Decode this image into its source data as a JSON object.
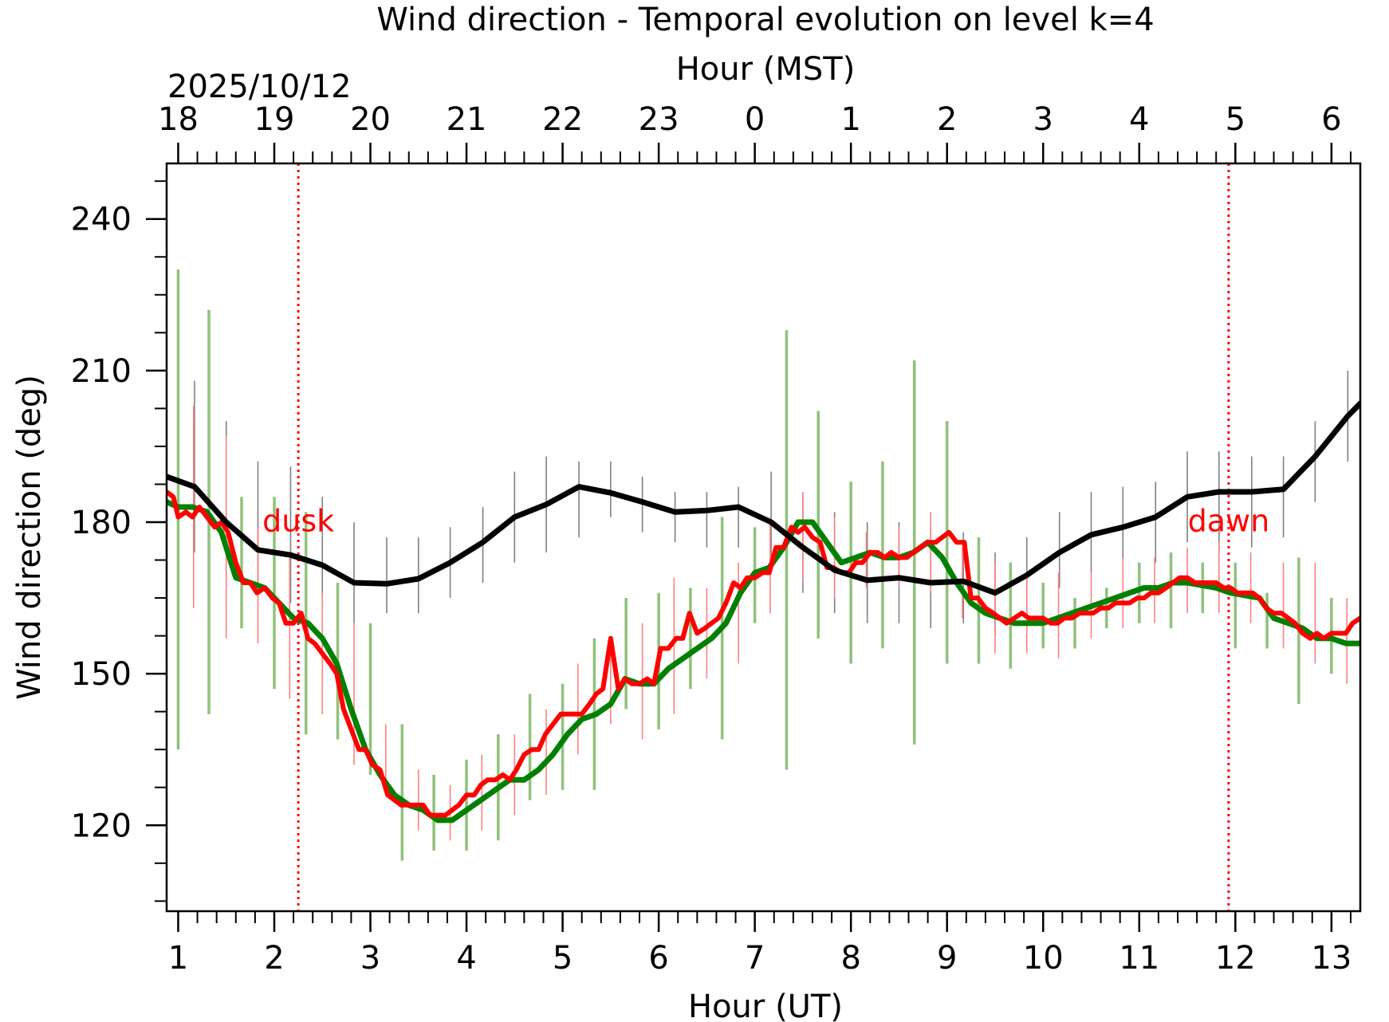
{
  "chart_data": {
    "type": "line",
    "title": "Wind direction - Temporal evolution on level k=4",
    "xlabel": "Hour (UT)",
    "x2label": "Hour (MST)",
    "date_label": "2025/10/12",
    "ylabel": "Wind direction (deg)",
    "xlim": [
      0.88,
      13.3
    ],
    "ylim": [
      103,
      251
    ],
    "x_ticks": [
      1,
      2,
      3,
      4,
      5,
      6,
      7,
      8,
      9,
      10,
      11,
      12,
      13
    ],
    "x_tick_labels": [
      "1",
      "2",
      "3",
      "4",
      "5",
      "6",
      "7",
      "8",
      "9",
      "10",
      "11",
      "12",
      "13"
    ],
    "x2_tick_labels": [
      "18",
      "19",
      "20",
      "21",
      "22",
      "23",
      "0",
      "1",
      "2",
      "3",
      "4",
      "5",
      "6"
    ],
    "y_ticks": [
      120,
      150,
      180,
      210,
      240
    ],
    "y_tick_labels": [
      "120",
      "150",
      "180",
      "210",
      "240"
    ],
    "grid": false,
    "annotations": [
      {
        "label": "dusk",
        "x": 2.25
      },
      {
        "label": "dawn",
        "x": 11.93
      }
    ],
    "colors": {
      "black": "#000000",
      "green": "#008000",
      "green_err": "#8fc27a",
      "red": "#ff0000",
      "black_err": "#808080",
      "red_err": "#ff8080"
    },
    "series": [
      {
        "color": "#000000",
        "x": [
          0.88,
          1.17,
          1.5,
          1.83,
          2.17,
          2.5,
          2.83,
          3.17,
          3.5,
          3.83,
          4.17,
          4.5,
          4.83,
          5.17,
          5.5,
          5.83,
          6.17,
          6.5,
          6.83,
          7.17,
          7.5,
          7.83,
          8.17,
          8.5,
          8.83,
          9.17,
          9.5,
          9.83,
          10.17,
          10.5,
          10.83,
          11.17,
          11.5,
          11.83,
          12.17,
          12.5,
          12.83,
          13.17,
          13.3
        ],
        "y": [
          189,
          187,
          180,
          174.5,
          173.5,
          171.5,
          168,
          167.8,
          168.8,
          172,
          176,
          181,
          183.5,
          187,
          185.8,
          184,
          182,
          182.3,
          183,
          180,
          175,
          170.5,
          168.5,
          169,
          168,
          168.3,
          166,
          169.5,
          174,
          177.5,
          179,
          181,
          185,
          186,
          186,
          186.5,
          193,
          201,
          203.5
        ],
        "err_x": [
          1.17,
          1.5,
          1.83,
          2.17,
          2.5,
          2.83,
          3.17,
          3.5,
          3.83,
          4.17,
          4.5,
          4.83,
          5.17,
          5.5,
          5.83,
          6.17,
          6.5,
          6.83,
          7.17,
          7.5,
          7.83,
          8.17,
          8.5,
          8.83,
          9.17,
          9.5,
          9.83,
          10.17,
          10.5,
          10.83,
          11.17,
          11.5,
          11.83,
          12.17,
          12.5,
          12.83,
          13.17
        ],
        "err_lo": [
          174,
          164,
          166,
          164,
          163,
          160,
          162,
          162,
          165,
          168,
          172,
          174,
          177,
          181,
          178,
          176,
          175,
          175,
          171,
          166,
          162,
          160,
          160,
          159,
          160,
          158,
          161,
          167,
          170,
          171,
          172,
          176,
          174,
          175,
          177,
          184,
          192
        ],
        "err_hi": [
          208,
          200,
          192,
          191,
          185,
          180,
          177,
          177,
          179,
          183,
          190,
          193,
          192,
          192,
          189,
          186,
          186,
          187,
          190,
          185,
          182,
          180,
          180,
          179,
          178,
          174,
          177,
          182,
          186,
          187,
          188,
          194,
          194,
          193,
          193,
          200,
          210
        ]
      },
      {
        "color": "#008000",
        "x": [
          0.88,
          1.0,
          1.15,
          1.3,
          1.45,
          1.6,
          1.75,
          1.9,
          2.05,
          2.2,
          2.35,
          2.5,
          2.65,
          2.8,
          2.95,
          3.1,
          3.25,
          3.4,
          3.55,
          3.7,
          3.85,
          4.0,
          4.15,
          4.3,
          4.45,
          4.6,
          4.75,
          4.9,
          5.05,
          5.2,
          5.35,
          5.5,
          5.65,
          5.8,
          5.95,
          6.1,
          6.25,
          6.4,
          6.55,
          6.7,
          6.85,
          7.0,
          7.15,
          7.3,
          7.45,
          7.6,
          7.75,
          7.9,
          8.05,
          8.2,
          8.35,
          8.5,
          8.65,
          8.8,
          8.95,
          9.1,
          9.25,
          9.4,
          9.55,
          9.7,
          9.85,
          10.0,
          10.15,
          10.3,
          10.45,
          10.6,
          10.75,
          10.9,
          11.05,
          11.2,
          11.35,
          11.5,
          11.65,
          11.8,
          11.95,
          12.1,
          12.25,
          12.4,
          12.55,
          12.7,
          12.85,
          13.0,
          13.15,
          13.3
        ],
        "y": [
          184,
          183,
          183,
          182,
          178,
          169,
          168,
          167,
          164,
          161,
          160,
          157,
          152,
          143,
          135,
          130,
          126,
          124,
          123,
          121,
          121,
          123,
          125,
          127,
          129,
          129,
          131,
          134,
          138,
          141,
          142,
          144,
          149,
          148,
          148,
          151,
          153,
          155,
          157,
          160,
          166,
          170,
          171,
          175,
          180,
          180,
          176,
          172,
          173,
          174,
          173,
          173,
          174,
          176,
          173,
          168,
          164,
          162,
          161,
          160,
          160,
          160,
          161,
          162,
          163,
          164,
          165,
          166,
          167,
          167,
          168,
          168,
          167.5,
          167,
          166,
          165.5,
          165,
          161,
          160,
          159,
          157,
          157,
          156,
          156
        ],
        "err_x": [
          1.0,
          1.32,
          1.66,
          2.0,
          2.33,
          2.66,
          3.0,
          3.33,
          3.66,
          4.0,
          4.33,
          4.66,
          5.0,
          5.33,
          5.66,
          6.0,
          6.33,
          6.66,
          7.0,
          7.33,
          7.66,
          8.0,
          8.33,
          8.66,
          9.0,
          9.33,
          9.66,
          10.0,
          10.33,
          10.66,
          11.0,
          11.33,
          11.66,
          12.0,
          12.33,
          12.66,
          13.0
        ],
        "err_lo": [
          135,
          142,
          159,
          147,
          138,
          137,
          130,
          113,
          115,
          115,
          117,
          125,
          127,
          127,
          143,
          139,
          147,
          137,
          160,
          131,
          157,
          152,
          155,
          136,
          152,
          152,
          151,
          155,
          155,
          159,
          160,
          159,
          162,
          155,
          155,
          144,
          150
        ],
        "err_hi": [
          230,
          222,
          185,
          185,
          182,
          168,
          160,
          140,
          130,
          133,
          138,
          146,
          148,
          157,
          165,
          166,
          167,
          181,
          179,
          218,
          202,
          188,
          192,
          212,
          200,
          177,
          172,
          168,
          165,
          167,
          172,
          174,
          172,
          172,
          166,
          173,
          165
        ]
      },
      {
        "color": "#ff0000",
        "x": [
          0.88,
          0.95,
          1.0,
          1.08,
          1.15,
          1.22,
          1.3,
          1.38,
          1.45,
          1.52,
          1.6,
          1.68,
          1.75,
          1.82,
          1.9,
          1.98,
          2.05,
          2.12,
          2.2,
          2.28,
          2.35,
          2.42,
          2.5,
          2.58,
          2.65,
          2.72,
          2.8,
          2.88,
          2.95,
          3.02,
          3.1,
          3.18,
          3.25,
          3.32,
          3.4,
          3.48,
          3.55,
          3.62,
          3.7,
          3.78,
          3.85,
          3.92,
          4.0,
          4.08,
          4.15,
          4.22,
          4.3,
          4.38,
          4.45,
          4.52,
          4.6,
          4.68,
          4.75,
          4.82,
          4.9,
          4.98,
          5.05,
          5.12,
          5.2,
          5.28,
          5.35,
          5.42,
          5.5,
          5.58,
          5.65,
          5.72,
          5.8,
          5.88,
          5.95,
          6.02,
          6.1,
          6.18,
          6.25,
          6.32,
          6.4,
          6.48,
          6.55,
          6.62,
          6.7,
          6.78,
          6.85,
          6.92,
          7.0,
          7.08,
          7.15,
          7.22,
          7.3,
          7.38,
          7.45,
          7.52,
          7.6,
          7.68,
          7.75,
          7.82,
          7.9,
          7.98,
          8.05,
          8.12,
          8.2,
          8.28,
          8.35,
          8.42,
          8.5,
          8.58,
          8.65,
          8.72,
          8.8,
          8.88,
          8.95,
          9.02,
          9.1,
          9.18,
          9.25,
          9.32,
          9.4,
          9.48,
          9.55,
          9.62,
          9.7,
          9.78,
          9.85,
          9.92,
          10.0,
          10.08,
          10.15,
          10.22,
          10.3,
          10.38,
          10.45,
          10.52,
          10.6,
          10.68,
          10.75,
          10.82,
          10.9,
          10.98,
          11.05,
          11.12,
          11.2,
          11.28,
          11.35,
          11.42,
          11.5,
          11.58,
          11.65,
          11.72,
          11.8,
          11.88,
          11.95,
          12.02,
          12.1,
          12.18,
          12.25,
          12.32,
          12.4,
          12.48,
          12.55,
          12.62,
          12.7,
          12.78,
          12.85,
          12.92,
          13.0,
          13.08,
          13.15,
          13.22,
          13.3
        ],
        "y": [
          186,
          185,
          181,
          182,
          181,
          183,
          181,
          179,
          180,
          178,
          172,
          168,
          168,
          166,
          167,
          165,
          164,
          160,
          160,
          162,
          157,
          156,
          154,
          152,
          150,
          143,
          139,
          135,
          135,
          132,
          131,
          126,
          125,
          124,
          124,
          124,
          124,
          122,
          122,
          122,
          123,
          124,
          126,
          126,
          128,
          129,
          129,
          130,
          129,
          131,
          134,
          135,
          135,
          138,
          140,
          142,
          142,
          142,
          142,
          144,
          146,
          147,
          157,
          147,
          149,
          148,
          148,
          149,
          148,
          155,
          155,
          157,
          157,
          162,
          158,
          159,
          160,
          161,
          164,
          168,
          167,
          169,
          169,
          170,
          170,
          175,
          175,
          179,
          178,
          179,
          177,
          176,
          171,
          171,
          170,
          170,
          172,
          172,
          174,
          174,
          173,
          174,
          173,
          173,
          174,
          175,
          176,
          176,
          177,
          178,
          176,
          176,
          165,
          165,
          163,
          162,
          161,
          160,
          161,
          162,
          161,
          161,
          161,
          160,
          160,
          161,
          161,
          162,
          162,
          162,
          163,
          163,
          164,
          164,
          164,
          165,
          165,
          166,
          166,
          167,
          168,
          169,
          169,
          168,
          168,
          168,
          168,
          167,
          167,
          166,
          166,
          166,
          165,
          163,
          162,
          162,
          161,
          160,
          158,
          157,
          158,
          157,
          158,
          158,
          158,
          160,
          161
        ],
        "err_x": [
          1.16,
          1.5,
          1.83,
          2.16,
          2.5,
          2.83,
          3.16,
          3.5,
          3.83,
          4.16,
          4.5,
          4.83,
          5.16,
          5.5,
          5.83,
          6.16,
          6.5,
          6.83,
          7.16,
          7.5,
          7.83,
          8.16,
          8.5,
          8.83,
          9.16,
          9.5,
          9.83,
          10.16,
          10.5,
          10.83,
          11.16,
          11.5,
          11.83,
          12.16,
          12.5,
          12.83,
          13.16
        ],
        "err_lo": [
          163,
          157,
          156,
          145,
          142,
          132,
          126,
          119,
          117,
          119,
          122,
          126,
          134,
          140,
          137,
          142,
          149,
          152,
          162,
          168,
          165,
          167,
          167,
          166,
          161,
          154,
          154,
          153,
          157,
          159,
          160,
          162,
          162,
          160,
          155,
          152,
          148
        ],
        "err_hi": [
          203,
          197,
          179,
          174,
          166,
          160,
          140,
          131,
          128,
          134,
          138,
          143,
          152,
          156,
          160,
          169,
          167,
          172,
          180,
          186,
          181,
          178,
          179,
          182,
          175,
          172,
          170,
          170,
          170,
          173,
          173,
          175,
          176,
          174,
          172,
          172,
          165
        ]
      }
    ]
  }
}
